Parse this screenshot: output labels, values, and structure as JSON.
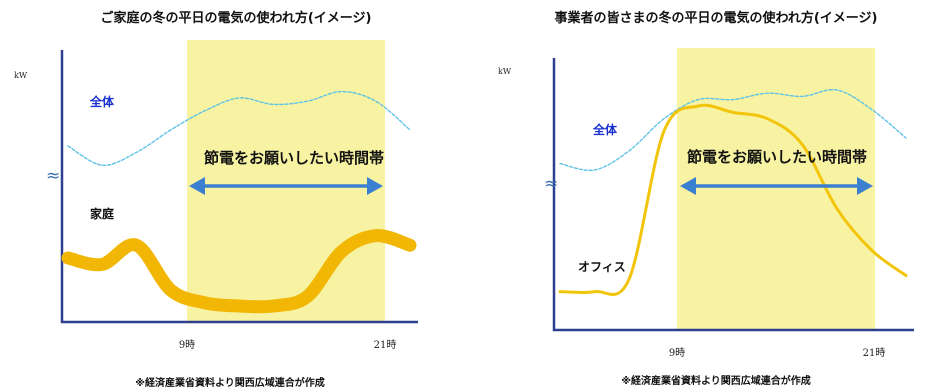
{
  "chart_data": [
    {
      "type": "line",
      "title": "ご家庭の冬の平日の電気の使われ方(イメージ)",
      "ylabel": "kW",
      "source_note": "※経済産業省資料より関西広域連合が作成",
      "x_ticks": [
        "9時",
        "21時"
      ],
      "highlight": {
        "label": "節電をお願いしたい時間帯",
        "from": "9時",
        "to": "21時"
      },
      "axis_break": "≈",
      "series": [
        {
          "name": "全体",
          "style": "dashed",
          "color": "#5ec2e6",
          "values": [
            0.55,
            0.49,
            0.53,
            0.6,
            0.66,
            0.7,
            0.68,
            0.69,
            0.72,
            0.69,
            0.6
          ]
        },
        {
          "name": "家庭",
          "style": "thick",
          "color": "#f2b705",
          "values": [
            0.2,
            0.18,
            0.24,
            0.1,
            0.06,
            0.05,
            0.05,
            0.08,
            0.22,
            0.27,
            0.24
          ]
        }
      ]
    },
    {
      "type": "line",
      "title": "事業者の皆さまの冬の平日の電気の使われ方(イメージ)",
      "ylabel": "kW",
      "source_note": "※経済産業省資料より関西広域連合が作成",
      "x_ticks": [
        "9時",
        "21時"
      ],
      "highlight": {
        "label": "節電をお願いしたい時間帯",
        "from": "9時",
        "to": "21時"
      },
      "axis_break": "≈",
      "series": [
        {
          "name": "全体",
          "style": "dashed",
          "color": "#5ec2e6",
          "values": [
            0.52,
            0.5,
            0.56,
            0.66,
            0.72,
            0.72,
            0.74,
            0.73,
            0.75,
            0.69,
            0.6
          ]
        },
        {
          "name": "オフィス",
          "style": "thin",
          "color": "#f2c40a",
          "values": [
            0.12,
            0.12,
            0.16,
            0.62,
            0.7,
            0.68,
            0.66,
            0.58,
            0.38,
            0.25,
            0.17
          ]
        }
      ]
    }
  ]
}
